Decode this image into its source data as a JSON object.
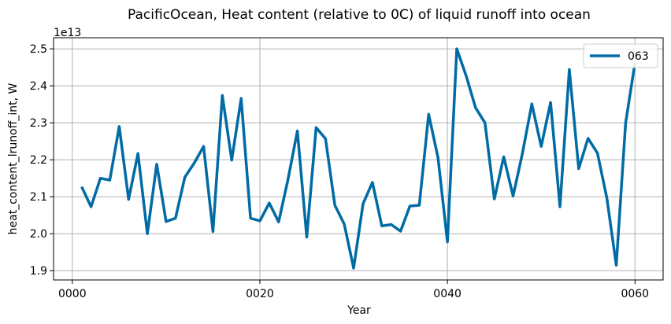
{
  "chart_data": {
    "type": "line",
    "title": "PacificOcean, Heat content (relative to 0C) of liquid runoff into ocean",
    "xlabel": "Year",
    "ylabel": "heat_content_lrunoff_int, W",
    "y_offset_label": "1e13",
    "xlim": [
      -2,
      63
    ],
    "ylim": [
      1.875,
      2.53
    ],
    "x_ticks": [
      0,
      20,
      40,
      60
    ],
    "x_tick_labels": [
      "0000",
      "0020",
      "0040",
      "0060"
    ],
    "y_ticks": [
      1.9,
      2.0,
      2.1,
      2.2,
      2.3,
      2.4,
      2.5
    ],
    "y_tick_labels": [
      "1.9",
      "2.0",
      "2.1",
      "2.2",
      "2.3",
      "2.4",
      "2.5"
    ],
    "grid": true,
    "legend": {
      "position": "top-right"
    },
    "colors": {
      "series": "#006ba4",
      "grid": "#b0b0b0"
    },
    "series": [
      {
        "name": "063",
        "x": [
          1,
          2,
          3,
          4,
          5,
          6,
          7,
          8,
          9,
          10,
          11,
          12,
          13,
          14,
          15,
          16,
          17,
          18,
          19,
          20,
          21,
          22,
          23,
          24,
          25,
          26,
          27,
          28,
          29,
          30,
          31,
          32,
          33,
          34,
          35,
          36,
          37,
          38,
          39,
          40,
          41,
          42,
          43,
          44,
          45,
          46,
          47,
          48,
          49,
          50,
          51,
          52,
          53,
          54,
          55,
          56,
          57,
          58,
          59,
          60
        ],
        "values": [
          2.127,
          2.073,
          2.15,
          2.145,
          2.29,
          2.093,
          2.217,
          2.0,
          2.188,
          2.033,
          2.042,
          2.153,
          2.191,
          2.236,
          2.006,
          2.374,
          2.199,
          2.366,
          2.042,
          2.035,
          2.083,
          2.032,
          2.147,
          2.278,
          1.991,
          2.287,
          2.257,
          2.077,
          2.026,
          1.907,
          2.081,
          2.139,
          2.021,
          2.025,
          2.007,
          2.075,
          2.077,
          2.323,
          2.205,
          1.978,
          2.5,
          2.427,
          2.341,
          2.3,
          2.094,
          2.208,
          2.102,
          2.218,
          2.351,
          2.236,
          2.355,
          2.073,
          2.444,
          2.176,
          2.258,
          2.218,
          2.096,
          1.915,
          2.3,
          2.463
        ]
      }
    ]
  }
}
